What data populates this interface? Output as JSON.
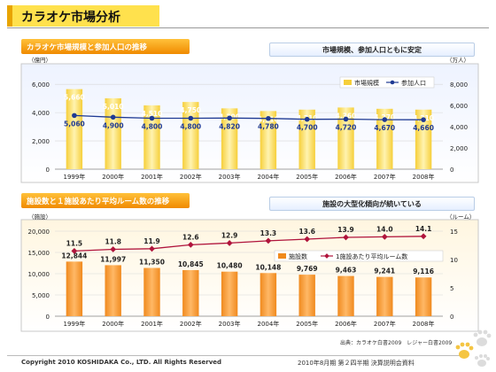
{
  "page": {
    "title": "カラオケ市場分析",
    "footer_left": "Copyright 2010 KOSHIDAKA Co., LTD. All Rights Reserved",
    "footer_right": "2010年8月期 第２四半期 決算説明会資料",
    "source": "出典：カラオケ白書2009　レジャー白書2009"
  },
  "colors": {
    "accent_orange": "#f08a00",
    "bar_yellow": "#f6cf3a",
    "bar_orange": "#f08a1e",
    "line_navy": "#1f3a93",
    "line_red": "#b0143c"
  },
  "icons": [
    "paw-prints-icon"
  ],
  "chart_data": [
    {
      "type": "bar",
      "section_title": "カラオケ市場規模と参加人口の推移",
      "callout": "市場規模、参加人口ともに安定",
      "y_unit_left": "（億円）",
      "y_unit_right": "（万人）",
      "categories": [
        "1999年",
        "2000年",
        "2001年",
        "2002年",
        "2003年",
        "2004年",
        "2005年",
        "2006年",
        "2007年",
        "2008年"
      ],
      "y_ticks_left": [
        "0",
        "2,000",
        "4,000",
        "6,000"
      ],
      "y_ticks_right": [
        "0",
        "2,000",
        "4,000",
        "6,000",
        "8,000"
      ],
      "ylim_left": [
        0,
        6700
      ],
      "ylim_right": [
        0,
        8933
      ],
      "series": [
        {
          "name": "市場規模",
          "type": "bar",
          "axis": "left",
          "values": [
            5660,
            5010,
            4510,
            4750,
            4300,
            4110,
            4210,
            4360,
            4270,
            4210
          ],
          "labels": [
            "5,660",
            "5,010",
            "4,510",
            "4,750",
            "4,300",
            "4,110",
            "4,210",
            "4,360",
            "4,270",
            "4,210"
          ]
        },
        {
          "name": "参加人口",
          "type": "line",
          "axis": "right",
          "values": [
            5060,
            4900,
            4800,
            4800,
            4820,
            4780,
            4700,
            4720,
            4670,
            4660
          ],
          "labels": [
            "5,060",
            "4,900",
            "4,800",
            "4,800",
            "4,820",
            "4,780",
            "4,700",
            "4,720",
            "4,670",
            "4,660"
          ]
        }
      ],
      "legend_position": "top-right",
      "grid": true
    },
    {
      "type": "bar",
      "section_title": "施設数と１施設あたり平均ルーム数の推移",
      "callout": "施設の大型化傾向が続いている",
      "y_unit_left": "（施設）",
      "y_unit_right": "（ルーム）",
      "categories": [
        "1999年",
        "2000年",
        "2001年",
        "2002年",
        "2003年",
        "2004年",
        "2005年",
        "2006年",
        "2007年",
        "2008年"
      ],
      "y_ticks_left": [
        "0",
        "5,000",
        "10,000",
        "15,000",
        "20,000"
      ],
      "y_ticks_right": [
        "0",
        "5",
        "10",
        "15"
      ],
      "ylim_left": [
        0,
        20000
      ],
      "ylim_right": [
        0,
        15
      ],
      "series": [
        {
          "name": "施設数",
          "type": "bar",
          "axis": "left",
          "values": [
            12844,
            11997,
            11350,
            10845,
            10480,
            10148,
            9769,
            9463,
            9241,
            9116
          ],
          "labels": [
            "12,844",
            "11,997",
            "11,350",
            "10,845",
            "10,480",
            "10,148",
            "9,769",
            "9,463",
            "9,241",
            "9,116"
          ]
        },
        {
          "name": "1施設あたり平均ルーム数",
          "type": "line",
          "axis": "right",
          "values": [
            11.5,
            11.8,
            11.9,
            12.6,
            12.9,
            13.3,
            13.6,
            13.9,
            14.0,
            14.1
          ],
          "labels": [
            "11.5",
            "11.8",
            "11.9",
            "12.6",
            "12.9",
            "13.3",
            "13.6",
            "13.9",
            "14.0",
            "14.1"
          ]
        }
      ],
      "legend_position": "top-right",
      "grid": true
    }
  ]
}
